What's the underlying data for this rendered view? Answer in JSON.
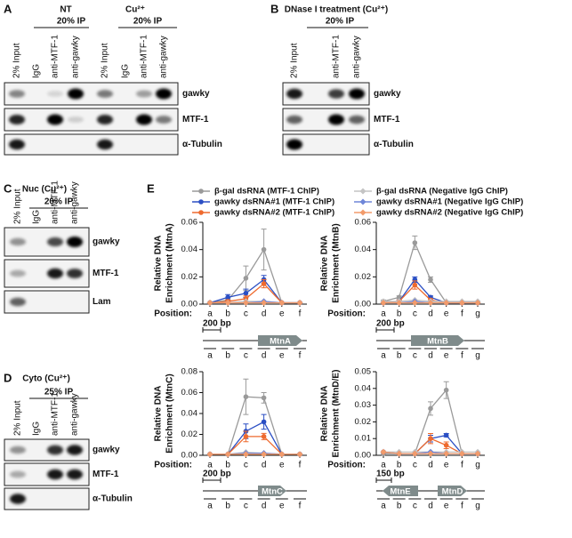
{
  "blots": [
    {
      "label": "A",
      "groups": [
        {
          "title": "NT",
          "ip": "20% IP"
        },
        {
          "title": "Cu²⁺",
          "ip": "20% IP"
        }
      ],
      "lanes": [
        "2% Input",
        "IgG",
        "anti-MTF-1",
        "anti-gawky",
        "2% Input",
        "IgG",
        "anti-MTF-1",
        "anti-gawky"
      ],
      "rows": [
        "gawky",
        "MTF-1",
        "α-Tubulin"
      ]
    },
    {
      "label": "B",
      "groups": [
        {
          "title": "DNase I treatment (Cu²⁺)",
          "ip": "20% IP"
        }
      ],
      "lanes": [
        "2% Input",
        null,
        "anti-MTF-1",
        "anti-gawky"
      ],
      "rows": [
        "gawky",
        "MTF-1",
        "α-Tubulin"
      ]
    },
    {
      "label": "C",
      "groups": [
        {
          "title": "Nuc (Cu²⁺)",
          "ip": "20% IP"
        }
      ],
      "lanes": [
        "2% Input",
        "IgG",
        "anti-MTF-1",
        "anti-gawky"
      ],
      "rows": [
        "gawky",
        "MTF-1",
        "Lam"
      ]
    },
    {
      "label": "D",
      "groups": [
        {
          "title": "Cyto (Cu²⁺)",
          "ip": "25% IP"
        }
      ],
      "lanes": [
        "2% Input",
        "IgG",
        "anti-MTF-1",
        "anti-gawky"
      ],
      "rows": [
        "gawky",
        "MTF-1",
        "α-Tubulin"
      ]
    }
  ],
  "panel_e_label": "E",
  "chart_data": [
    {
      "type": "line",
      "ylabel": [
        "Relative DNA",
        "Enrichment (MtnA)"
      ],
      "xlabel": "Position:",
      "categories": [
        "a",
        "b",
        "c",
        "d",
        "e",
        "f"
      ],
      "ylim": [
        0,
        0.06
      ],
      "yticks": [
        {
          "value": 0,
          "label": "0.00"
        },
        {
          "value": 0.02,
          "label": "0.02"
        },
        {
          "value": 0.04,
          "label": "0.04"
        },
        {
          "value": 0.06,
          "label": "0.06"
        }
      ],
      "series": [
        {
          "name": "β-gal dsRNA (MTF-1 ChIP)",
          "color": "#9a9a9a",
          "marker": "circle",
          "values": [
            0.001,
            0.003,
            0.019,
            0.04,
            0.001,
            0.001
          ],
          "errors": [
            0,
            0.001,
            0.009,
            0.015,
            0,
            0
          ]
        },
        {
          "name": "gawky dsRNA#1 (MTF-1 ChIP)",
          "color": "#2b4fc4",
          "marker": "circle",
          "values": [
            0.001,
            0.005,
            0.008,
            0.018,
            0.001,
            0.001
          ],
          "errors": [
            0,
            0.002,
            0.003,
            0.003,
            0,
            0
          ]
        },
        {
          "name": "gawky dsRNA#2 (MTF-1 ChIP)",
          "color": "#ee6a2e",
          "marker": "circle",
          "values": [
            0.001,
            0.002,
            0.004,
            0.015,
            0.001,
            0.001
          ],
          "errors": [
            0,
            0.001,
            0.002,
            0.003,
            0,
            0
          ]
        },
        {
          "name": "β-gal dsRNA (Negative IgG ChIP)",
          "color": "#c4c4c4",
          "marker": "diamond",
          "values": [
            0.001,
            0.001,
            0.002,
            0.002,
            0.001,
            0.001
          ]
        },
        {
          "name": "gawky dsRNA#1 (Negative IgG ChIP)",
          "color": "#6f86d8",
          "marker": "diamond",
          "values": [
            0.001,
            0.001,
            0.001,
            0.002,
            0.001,
            0.001
          ]
        },
        {
          "name": "gawky dsRNA#2 (Negative IgG ChIP)",
          "color": "#f29b6b",
          "marker": "diamond",
          "values": [
            0.001,
            0.001,
            0.001,
            0.001,
            0.001,
            0.001
          ]
        }
      ],
      "map": {
        "scale": "200 bp",
        "genes": [
          {
            "name": "MtnA",
            "direction": "right"
          }
        ]
      }
    },
    {
      "type": "line",
      "ylabel": [
        "Relative DNA",
        "Enrichment (MtnB)"
      ],
      "xlabel": "Position:",
      "categories": [
        "a",
        "b",
        "c",
        "d",
        "e",
        "f",
        "g"
      ],
      "ylim": [
        0,
        0.06
      ],
      "yticks": [
        {
          "value": 0,
          "label": "0.00"
        },
        {
          "value": 0.02,
          "label": "0.02"
        },
        {
          "value": 0.04,
          "label": "0.04"
        },
        {
          "value": 0.06,
          "label": "0.06"
        }
      ],
      "series": [
        {
          "color": "#9a9a9a",
          "marker": "circle",
          "values": [
            0.002,
            0.005,
            0.045,
            0.018,
            0.001,
            0.001,
            0.001
          ],
          "errors": [
            0.001,
            0.001,
            0.005,
            0.002,
            0,
            0,
            0
          ]
        },
        {
          "color": "#2b4fc4",
          "marker": "circle",
          "values": [
            0.001,
            0.002,
            0.018,
            0.005,
            0.001,
            0.001,
            0.001
          ],
          "errors": [
            0,
            0.001,
            0.002,
            0.001,
            0,
            0,
            0
          ]
        },
        {
          "color": "#ee6a2e",
          "marker": "circle",
          "values": [
            0.001,
            0.002,
            0.014,
            0.003,
            0.001,
            0.001,
            0.001
          ],
          "errors": [
            0,
            0.001,
            0.003,
            0.001,
            0,
            0,
            0
          ]
        },
        {
          "color": "#c4c4c4",
          "marker": "diamond",
          "values": [
            0.002,
            0.002,
            0.003,
            0.002,
            0.002,
            0.002,
            0.002
          ]
        },
        {
          "color": "#6f86d8",
          "marker": "diamond",
          "values": [
            0.001,
            0.001,
            0.002,
            0.001,
            0.001,
            0.001,
            0.001
          ]
        },
        {
          "color": "#f29b6b",
          "marker": "diamond",
          "values": [
            0.001,
            0.001,
            0.001,
            0.001,
            0.001,
            0.001,
            0.001
          ]
        }
      ],
      "map": {
        "scale": "200 bp",
        "genes": [
          {
            "name": "MtnB",
            "direction": "right"
          }
        ]
      }
    },
    {
      "type": "line",
      "ylabel": [
        "Relative DNA",
        "Enrichment (MtnC)"
      ],
      "xlabel": "Position:",
      "categories": [
        "a",
        "b",
        "c",
        "d",
        "e",
        "f"
      ],
      "ylim": [
        0,
        0.08
      ],
      "yticks": [
        {
          "value": 0,
          "label": "0.00"
        },
        {
          "value": 0.02,
          "label": "0.02"
        },
        {
          "value": 0.04,
          "label": "0.04"
        },
        {
          "value": 0.06,
          "label": "0.06"
        },
        {
          "value": 0.08,
          "label": "0.08"
        }
      ],
      "series": [
        {
          "color": "#9a9a9a",
          "marker": "circle",
          "values": [
            0.001,
            0.001,
            0.056,
            0.055,
            0.001,
            0.001
          ],
          "errors": [
            0,
            0,
            0.017,
            0.005,
            0,
            0
          ]
        },
        {
          "color": "#2b4fc4",
          "marker": "circle",
          "values": [
            0.001,
            0.001,
            0.023,
            0.032,
            0.001,
            0.001
          ],
          "errors": [
            0,
            0,
            0.007,
            0.007,
            0,
            0
          ]
        },
        {
          "color": "#ee6a2e",
          "marker": "circle",
          "values": [
            0.001,
            0.001,
            0.018,
            0.018,
            0.001,
            0.001
          ],
          "errors": [
            0,
            0,
            0.005,
            0.003,
            0,
            0
          ]
        },
        {
          "color": "#c4c4c4",
          "marker": "diamond",
          "values": [
            0.001,
            0.001,
            0.003,
            0.002,
            0.001,
            0.001
          ]
        },
        {
          "color": "#6f86d8",
          "marker": "diamond",
          "values": [
            0.001,
            0.001,
            0.002,
            0.002,
            0.001,
            0.001
          ]
        },
        {
          "color": "#f29b6b",
          "marker": "diamond",
          "values": [
            0.001,
            0.001,
            0.001,
            0.001,
            0.001,
            0.001
          ]
        }
      ],
      "map": {
        "scale": "200 bp",
        "genes": [
          {
            "name": "MtnC",
            "direction": "right"
          }
        ]
      }
    },
    {
      "type": "line",
      "ylabel": [
        "Relative DNA",
        "Enrichment (MtnD/E)"
      ],
      "xlabel": "Position:",
      "categories": [
        "a",
        "b",
        "c",
        "d",
        "e",
        "f",
        "g"
      ],
      "ylim": [
        0,
        0.05
      ],
      "yticks": [
        {
          "value": 0,
          "label": "0.00"
        },
        {
          "value": 0.01,
          "label": "0.01"
        },
        {
          "value": 0.02,
          "label": "0.02"
        },
        {
          "value": 0.03,
          "label": "0.03"
        },
        {
          "value": 0.04,
          "label": "0.04"
        },
        {
          "value": 0.05,
          "label": "0.05"
        }
      ],
      "series": [
        {
          "color": "#9a9a9a",
          "marker": "circle",
          "values": [
            0.001,
            0.001,
            0.001,
            0.028,
            0.039,
            0.001,
            0.001
          ],
          "errors": [
            0,
            0,
            0,
            0.004,
            0.005,
            0,
            0
          ]
        },
        {
          "color": "#2b4fc4",
          "marker": "circle",
          "values": [
            0.002,
            0.001,
            0.001,
            0.01,
            0.012,
            0.001,
            0.001
          ],
          "errors": [
            0,
            0,
            0,
            0.002,
            0.001,
            0,
            0
          ]
        },
        {
          "color": "#ee6a2e",
          "marker": "circle",
          "values": [
            0.002,
            0.001,
            0.001,
            0.01,
            0.006,
            0.001,
            0.001
          ],
          "errors": [
            0,
            0,
            0,
            0.003,
            0.002,
            0,
            0
          ]
        },
        {
          "color": "#c4c4c4",
          "marker": "diamond",
          "values": [
            0.002,
            0.002,
            0.002,
            0.002,
            0.002,
            0.002,
            0.002
          ]
        },
        {
          "color": "#6f86d8",
          "marker": "diamond",
          "values": [
            0.002,
            0.001,
            0.001,
            0.002,
            0.001,
            0.001,
            0.001
          ]
        },
        {
          "color": "#f29b6b",
          "marker": "diamond",
          "values": [
            0.002,
            0.001,
            0.001,
            0.001,
            0.001,
            0.001,
            0.001
          ]
        }
      ],
      "map": {
        "scale": "150 bp",
        "genes": [
          {
            "name": "MtnE",
            "direction": "left"
          },
          {
            "name": "MtnD",
            "direction": "right"
          }
        ]
      }
    }
  ]
}
